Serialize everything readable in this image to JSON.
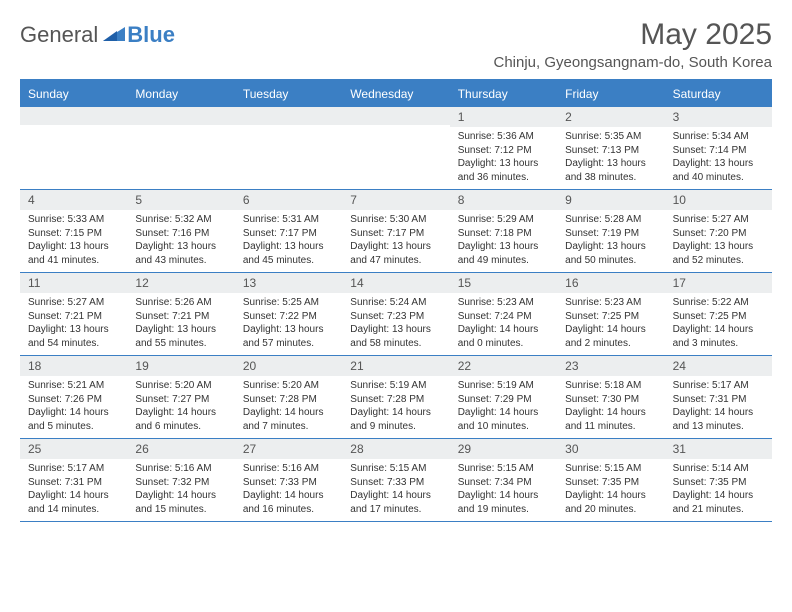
{
  "brand": {
    "part1": "General",
    "part2": "Blue"
  },
  "title": "May 2025",
  "location": "Chinju, Gyeongsangnam-do, South Korea",
  "colors": {
    "accent": "#3b7fc4",
    "header_text": "#ffffff",
    "daynum_bg": "#eceeef",
    "text": "#333333",
    "muted": "#555555"
  },
  "day_names": [
    "Sunday",
    "Monday",
    "Tuesday",
    "Wednesday",
    "Thursday",
    "Friday",
    "Saturday"
  ],
  "weeks": [
    [
      null,
      null,
      null,
      null,
      {
        "n": "1",
        "sr": "5:36 AM",
        "ss": "7:12 PM",
        "dl": "13 hours and 36 minutes."
      },
      {
        "n": "2",
        "sr": "5:35 AM",
        "ss": "7:13 PM",
        "dl": "13 hours and 38 minutes."
      },
      {
        "n": "3",
        "sr": "5:34 AM",
        "ss": "7:14 PM",
        "dl": "13 hours and 40 minutes."
      }
    ],
    [
      {
        "n": "4",
        "sr": "5:33 AM",
        "ss": "7:15 PM",
        "dl": "13 hours and 41 minutes."
      },
      {
        "n": "5",
        "sr": "5:32 AM",
        "ss": "7:16 PM",
        "dl": "13 hours and 43 minutes."
      },
      {
        "n": "6",
        "sr": "5:31 AM",
        "ss": "7:17 PM",
        "dl": "13 hours and 45 minutes."
      },
      {
        "n": "7",
        "sr": "5:30 AM",
        "ss": "7:17 PM",
        "dl": "13 hours and 47 minutes."
      },
      {
        "n": "8",
        "sr": "5:29 AM",
        "ss": "7:18 PM",
        "dl": "13 hours and 49 minutes."
      },
      {
        "n": "9",
        "sr": "5:28 AM",
        "ss": "7:19 PM",
        "dl": "13 hours and 50 minutes."
      },
      {
        "n": "10",
        "sr": "5:27 AM",
        "ss": "7:20 PM",
        "dl": "13 hours and 52 minutes."
      }
    ],
    [
      {
        "n": "11",
        "sr": "5:27 AM",
        "ss": "7:21 PM",
        "dl": "13 hours and 54 minutes."
      },
      {
        "n": "12",
        "sr": "5:26 AM",
        "ss": "7:21 PM",
        "dl": "13 hours and 55 minutes."
      },
      {
        "n": "13",
        "sr": "5:25 AM",
        "ss": "7:22 PM",
        "dl": "13 hours and 57 minutes."
      },
      {
        "n": "14",
        "sr": "5:24 AM",
        "ss": "7:23 PM",
        "dl": "13 hours and 58 minutes."
      },
      {
        "n": "15",
        "sr": "5:23 AM",
        "ss": "7:24 PM",
        "dl": "14 hours and 0 minutes."
      },
      {
        "n": "16",
        "sr": "5:23 AM",
        "ss": "7:25 PM",
        "dl": "14 hours and 2 minutes."
      },
      {
        "n": "17",
        "sr": "5:22 AM",
        "ss": "7:25 PM",
        "dl": "14 hours and 3 minutes."
      }
    ],
    [
      {
        "n": "18",
        "sr": "5:21 AM",
        "ss": "7:26 PM",
        "dl": "14 hours and 5 minutes."
      },
      {
        "n": "19",
        "sr": "5:20 AM",
        "ss": "7:27 PM",
        "dl": "14 hours and 6 minutes."
      },
      {
        "n": "20",
        "sr": "5:20 AM",
        "ss": "7:28 PM",
        "dl": "14 hours and 7 minutes."
      },
      {
        "n": "21",
        "sr": "5:19 AM",
        "ss": "7:28 PM",
        "dl": "14 hours and 9 minutes."
      },
      {
        "n": "22",
        "sr": "5:19 AM",
        "ss": "7:29 PM",
        "dl": "14 hours and 10 minutes."
      },
      {
        "n": "23",
        "sr": "5:18 AM",
        "ss": "7:30 PM",
        "dl": "14 hours and 11 minutes."
      },
      {
        "n": "24",
        "sr": "5:17 AM",
        "ss": "7:31 PM",
        "dl": "14 hours and 13 minutes."
      }
    ],
    [
      {
        "n": "25",
        "sr": "5:17 AM",
        "ss": "7:31 PM",
        "dl": "14 hours and 14 minutes."
      },
      {
        "n": "26",
        "sr": "5:16 AM",
        "ss": "7:32 PM",
        "dl": "14 hours and 15 minutes."
      },
      {
        "n": "27",
        "sr": "5:16 AM",
        "ss": "7:33 PM",
        "dl": "14 hours and 16 minutes."
      },
      {
        "n": "28",
        "sr": "5:15 AM",
        "ss": "7:33 PM",
        "dl": "14 hours and 17 minutes."
      },
      {
        "n": "29",
        "sr": "5:15 AM",
        "ss": "7:34 PM",
        "dl": "14 hours and 19 minutes."
      },
      {
        "n": "30",
        "sr": "5:15 AM",
        "ss": "7:35 PM",
        "dl": "14 hours and 20 minutes."
      },
      {
        "n": "31",
        "sr": "5:14 AM",
        "ss": "7:35 PM",
        "dl": "14 hours and 21 minutes."
      }
    ]
  ],
  "labels": {
    "sunrise": "Sunrise:",
    "sunset": "Sunset:",
    "daylight": "Daylight:"
  }
}
